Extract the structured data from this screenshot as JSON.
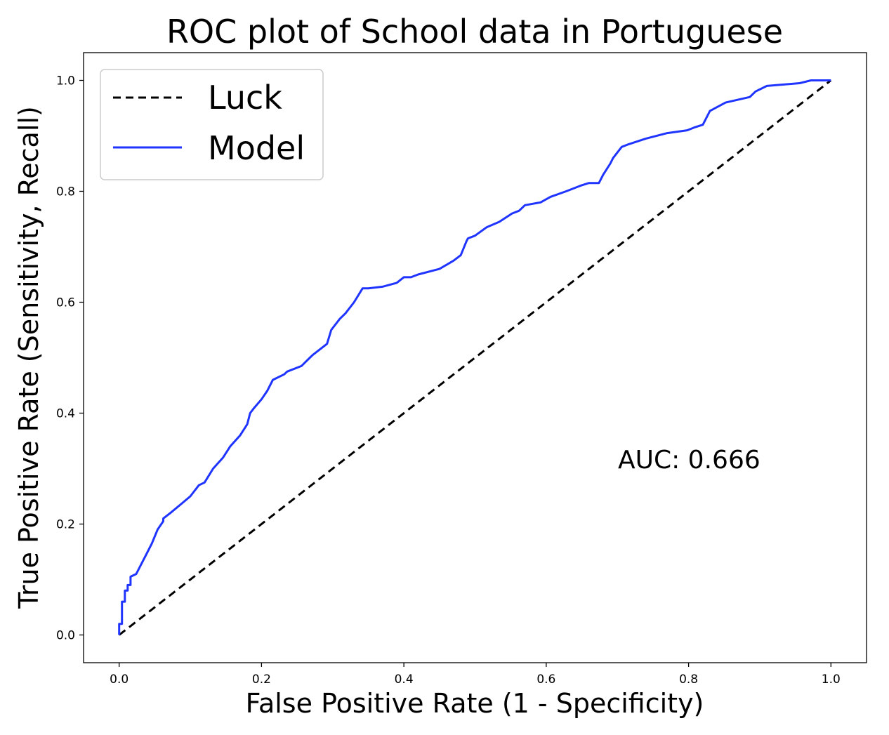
{
  "chart_data": {
    "type": "line",
    "title": "ROC plot of School data in Portuguese",
    "xlabel": "False Positive Rate (1 - Specificity)",
    "ylabel": "True Positive Rate (Sensitivity, Recall)",
    "xlim": [
      -0.05,
      1.05
    ],
    "ylim": [
      -0.05,
      1.05
    ],
    "xticks": [
      0.0,
      0.2,
      0.4,
      0.6,
      0.8,
      1.0
    ],
    "yticks": [
      0.0,
      0.2,
      0.4,
      0.6,
      0.8,
      1.0
    ],
    "xtick_labels": [
      "0.0",
      "0.2",
      "0.4",
      "0.6",
      "0.8",
      "1.0"
    ],
    "ytick_labels": [
      "0.0",
      "0.2",
      "0.4",
      "0.6",
      "0.8",
      "1.0"
    ],
    "grid": false,
    "legend_position": "top-left",
    "annotation": "AUC: 0.666",
    "series": [
      {
        "name": "Luck",
        "color": "#000000",
        "style": "dashed",
        "x": [
          0.0,
          1.0
        ],
        "y": [
          0.0,
          1.0
        ]
      },
      {
        "name": "Model",
        "color": "#1f35ff",
        "style": "solid",
        "x": [
          0.0,
          0.0,
          0.004,
          0.004,
          0.008,
          0.008,
          0.012,
          0.012,
          0.016,
          0.016,
          0.024,
          0.034,
          0.038,
          0.046,
          0.054,
          0.062,
          0.062,
          0.072,
          0.086,
          0.1,
          0.112,
          0.12,
          0.132,
          0.146,
          0.156,
          0.17,
          0.18,
          0.184,
          0.19,
          0.2,
          0.208,
          0.216,
          0.232,
          0.236,
          0.256,
          0.268,
          0.272,
          0.292,
          0.298,
          0.31,
          0.318,
          0.33,
          0.342,
          0.35,
          0.37,
          0.39,
          0.4,
          0.41,
          0.42,
          0.45,
          0.47,
          0.48,
          0.488,
          0.49,
          0.5,
          0.516,
          0.534,
          0.552,
          0.562,
          0.57,
          0.592,
          0.606,
          0.628,
          0.648,
          0.66,
          0.674,
          0.68,
          0.69,
          0.694,
          0.706,
          0.716,
          0.74,
          0.77,
          0.798,
          0.808,
          0.82,
          0.83,
          0.852,
          0.886,
          0.894,
          0.91,
          0.956,
          0.972,
          1.0
        ],
        "y": [
          0.0,
          0.02,
          0.02,
          0.06,
          0.06,
          0.08,
          0.08,
          0.09,
          0.09,
          0.105,
          0.11,
          0.135,
          0.145,
          0.165,
          0.19,
          0.205,
          0.21,
          0.22,
          0.235,
          0.25,
          0.27,
          0.275,
          0.3,
          0.32,
          0.34,
          0.36,
          0.38,
          0.4,
          0.41,
          0.425,
          0.44,
          0.46,
          0.47,
          0.475,
          0.485,
          0.5,
          0.505,
          0.525,
          0.55,
          0.57,
          0.58,
          0.6,
          0.625,
          0.625,
          0.628,
          0.635,
          0.645,
          0.645,
          0.65,
          0.66,
          0.675,
          0.685,
          0.71,
          0.715,
          0.72,
          0.735,
          0.745,
          0.76,
          0.765,
          0.775,
          0.78,
          0.79,
          0.8,
          0.81,
          0.815,
          0.815,
          0.83,
          0.85,
          0.86,
          0.88,
          0.885,
          0.895,
          0.905,
          0.91,
          0.915,
          0.92,
          0.945,
          0.96,
          0.97,
          0.98,
          0.99,
          0.995,
          1.0,
          1.0
        ]
      }
    ]
  }
}
